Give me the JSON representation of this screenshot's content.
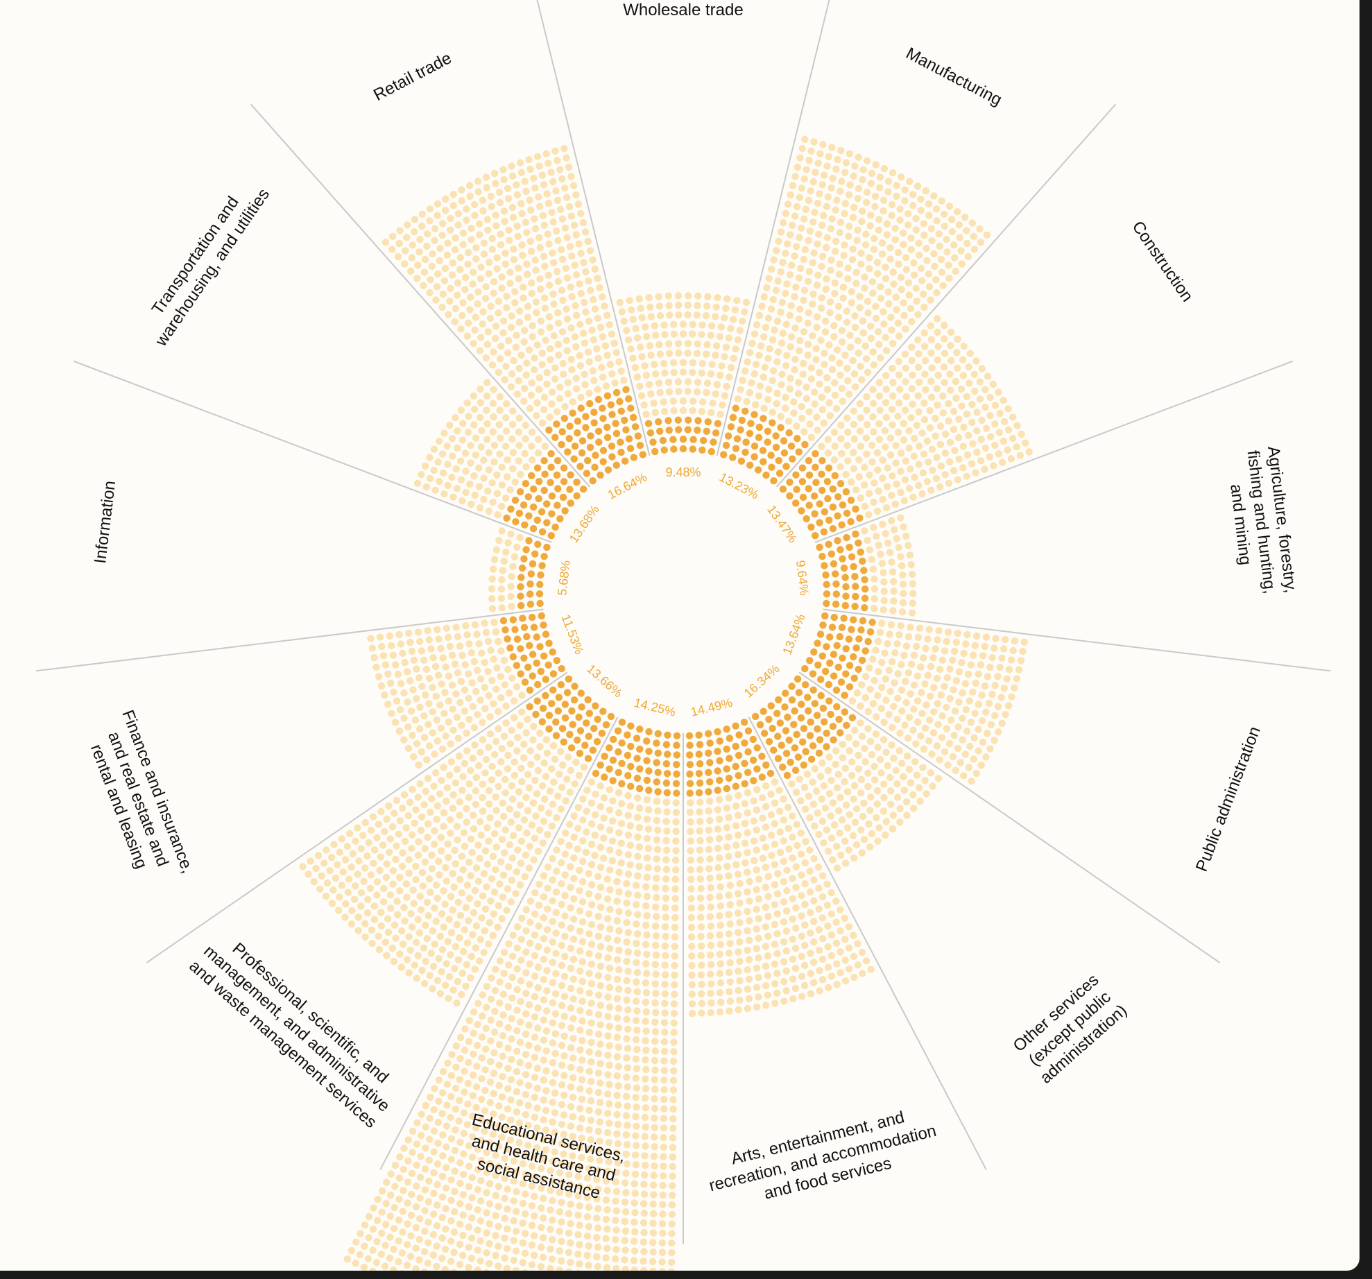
{
  "colors": {
    "background": "#fdfcf8",
    "dot_light": "#fbe2b2",
    "dot_dark": "#f0a93c",
    "percent_text": "#f0a834",
    "divider": "#c9c9c9",
    "label_text": "#111111"
  },
  "chart_data": {
    "type": "radial-dot-bar",
    "title": "",
    "categories": [
      "Wholesale trade",
      "Manufacturing",
      "Construction",
      "Agriculture, forestry, fishing and hunting, and mining",
      "Public administration",
      "Other services (except public administration)",
      "Arts, entertainment, and recreation, and accommodation and food services",
      "Educational services, and health care and social assistance",
      "Professional, scientific, and management, and administrative and waste management services",
      "Finance and insurance, and real estate and rental and leasing",
      "Information",
      "Transportation and warehousing, and utilities",
      "Retail trade"
    ],
    "label_lines": [
      [
        "Wholesale trade"
      ],
      [
        "Manufacturing"
      ],
      [
        "Construction"
      ],
      [
        "Agriculture, forestry,",
        "fishing and hunting,",
        "and mining"
      ],
      [
        "Public administration"
      ],
      [
        "Other services",
        "(except public",
        "administration)"
      ],
      [
        "Arts, entertainment, and",
        "recreation, and accommodation",
        "and food services"
      ],
      [
        "Educational services,",
        "and health care and",
        "social assistance"
      ],
      [
        "Professional, scientific, and",
        "management, and administrative",
        "and waste management services"
      ],
      [
        "Finance and insurance,",
        "and real estate and",
        "rental and leasing"
      ],
      [
        "Information"
      ],
      [
        "Transportation and",
        "warehousing, and utilities"
      ],
      [
        "Retail trade"
      ]
    ],
    "percent_labels": [
      "9.48%",
      "13.23%",
      "13.47%",
      "9.64%",
      "13.64%",
      "16.34%",
      "14.49%",
      "14.25%",
      "13.66%",
      "11.53%",
      "5.68%",
      "13.68%",
      "16.64%"
    ],
    "percent_values": [
      9.48,
      13.23,
      13.47,
      9.64,
      13.64,
      16.34,
      14.49,
      14.25,
      13.66,
      11.53,
      5.68,
      13.68,
      16.64
    ],
    "total_values": [
      5.9,
      12.1,
      8.8,
      3.6,
      7.6,
      6.7,
      10.5,
      22.2,
      12.3,
      6.7,
      2.0,
      5.7,
      11.8
    ]
  }
}
